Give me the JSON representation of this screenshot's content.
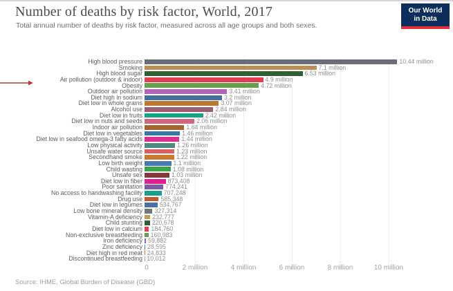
{
  "header": {
    "title": "Number of deaths by risk factor, World, 2017",
    "subtitle": "Total annual number of deaths by risk factor, measured across all age groups and both sexes.",
    "logo": {
      "line1": "Our World",
      "line2": "in Data",
      "bg": "#0d2e5a",
      "accent": "#e0303e"
    }
  },
  "annotation": {
    "type": "red-arrow",
    "color": "#b43c32",
    "points_to": "Air pollution (outdoor & indoor)"
  },
  "chart_data": {
    "type": "bar",
    "orientation": "horizontal",
    "title": "Number of deaths by risk factor, World, 2017",
    "xlabel": "",
    "ylabel": "",
    "xlim": [
      0,
      10440000
    ],
    "grid": "dotted-vertical",
    "legend": "none",
    "x_ticks": [
      {
        "value": 0,
        "label": "0"
      },
      {
        "value": 2000000,
        "label": "2 million"
      },
      {
        "value": 4000000,
        "label": "4 million"
      },
      {
        "value": 6000000,
        "label": "6 million"
      },
      {
        "value": 8000000,
        "label": "8 million"
      },
      {
        "value": 10000000,
        "label": "10 million"
      }
    ],
    "rows": [
      {
        "label": "High blood pressure",
        "value": 10440000,
        "display": "10.44 million",
        "color": "#6b6e78"
      },
      {
        "label": "Smoking",
        "value": 7100000,
        "display": "7.1 million",
        "color": "#bd8f56"
      },
      {
        "label": "High blood sugar",
        "value": 6530000,
        "display": "6.53 million",
        "color": "#2f5f35"
      },
      {
        "label": "Air pollution (outdoor & indoor)",
        "value": 4900000,
        "display": "4.9 million",
        "color": "#e13c4f"
      },
      {
        "label": "Obesity",
        "value": 4720000,
        "display": "4.72 million",
        "color": "#69a04e"
      },
      {
        "label": "Outdoor air pollution",
        "value": 3410000,
        "display": "3.41 million",
        "color": "#b262b8"
      },
      {
        "label": "Diet high in sodium",
        "value": 3200000,
        "display": "3.2 million",
        "color": "#426f9d"
      },
      {
        "label": "Diet low in whole grains",
        "value": 3070000,
        "display": "3.07 million",
        "color": "#bb7a2d"
      },
      {
        "label": "Alcohol use",
        "value": 2840000,
        "display": "2.84 million",
        "color": "#9d5e75"
      },
      {
        "label": "Diet low in fruits",
        "value": 2420000,
        "display": "2.42 million",
        "color": "#18a385"
      },
      {
        "label": "Diet low in nuts and seeds",
        "value": 2060000,
        "display": "2.06 million",
        "color": "#d0697d"
      },
      {
        "label": "Indoor air pollution",
        "value": 1640000,
        "display": "1.64 million",
        "color": "#a6642f"
      },
      {
        "label": "Diet low in vegetables",
        "value": 1460000,
        "display": "1.46 million",
        "color": "#3a78a9"
      },
      {
        "label": "Diet low in seafood omega-3 fatty acids",
        "value": 1440000,
        "display": "1.44 million",
        "color": "#df2d92"
      },
      {
        "label": "Low physical activity",
        "value": 1260000,
        "display": "1.26 million",
        "color": "#4e8a80"
      },
      {
        "label": "Unsafe water source",
        "value": 1230000,
        "display": "1.23 million",
        "color": "#d95f62"
      },
      {
        "label": "Secondhand smoke",
        "value": 1220000,
        "display": "1.22 million",
        "color": "#c97a2b"
      },
      {
        "label": "Low birth weight",
        "value": 1100000,
        "display": "1.1 million",
        "color": "#4a7bb0"
      },
      {
        "label": "Child wasting",
        "value": 1080000,
        "display": "1.08 million",
        "color": "#3aa34c"
      },
      {
        "label": "Unsafe sex",
        "value": 1030000,
        "display": "1.03 million",
        "color": "#843a38"
      },
      {
        "label": "Diet low in fiber",
        "value": 873408,
        "display": "873,408",
        "color": "#df218f"
      },
      {
        "label": "Poor sanitation",
        "value": 774241,
        "display": "774,241",
        "color": "#7b5aa6"
      },
      {
        "label": "No access to handwashing facility",
        "value": 707248,
        "display": "707,248",
        "color": "#1b9e8a"
      },
      {
        "label": "Drug use",
        "value": 585348,
        "display": "585,348",
        "color": "#bf5b2d"
      },
      {
        "label": "Diet low in legumes",
        "value": 534767,
        "display": "534,767",
        "color": "#4d70a0"
      },
      {
        "label": "Low bone mineral density",
        "value": 327314,
        "display": "327,314",
        "color": "#71757e"
      },
      {
        "label": "Vitamin-A deficiency",
        "value": 232777,
        "display": "232,777",
        "color": "#c49a58"
      },
      {
        "label": "Child stunting",
        "value": 220678,
        "display": "220,678",
        "color": "#2e6135"
      },
      {
        "label": "Diet low in calcium",
        "value": 184760,
        "display": "184,760",
        "color": "#e23d50"
      },
      {
        "label": "Non-exclusive breastfeeding",
        "value": 160983,
        "display": "160,983",
        "color": "#62a14d"
      },
      {
        "label": "Iron deficiency",
        "value": 59882,
        "display": "59,882",
        "color": "#8b62b8"
      },
      {
        "label": "Zinc deficiency",
        "value": 28595,
        "display": "28,595",
        "color": "#3a78a9"
      },
      {
        "label": "Diet high in red meat",
        "value": 24833,
        "display": "24,833",
        "color": "#d7722c"
      },
      {
        "label": "Discontinued breastfeeding",
        "value": 10012,
        "display": "10,012",
        "color": "#9a9a9a"
      }
    ]
  },
  "footer": {
    "source": "Source: IHME, Global Burden of Disease (GBD)"
  }
}
